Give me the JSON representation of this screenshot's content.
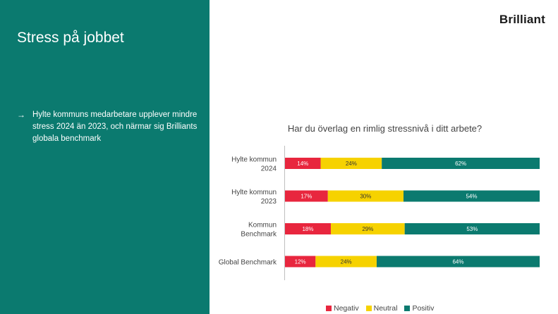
{
  "slide": {
    "title": "Stress på jobbet",
    "bullet_arrow": "→",
    "bullet_text": "Hylte kommuns medarbetare upplever mindre stress 2024 än 2023, och närmar sig Brilliants globala benchmark",
    "logo": "Brilliant"
  },
  "colors": {
    "panel": "#0b7a6f",
    "negativ": "#e8263e",
    "neutral": "#f6d200",
    "positiv": "#0b7a6f"
  },
  "chart_data": {
    "type": "bar",
    "orientation": "horizontal-stacked-100",
    "title": "Har du överlag en rimlig stressnivå i ditt arbete?",
    "categories": [
      [
        "Hylte kommun",
        "2024"
      ],
      [
        "Hylte kommun",
        "2023"
      ],
      [
        "Kommun",
        "Benchmark"
      ],
      [
        "Global Benchmark"
      ]
    ],
    "series": [
      {
        "name": "Negativ",
        "color": "#e8263e",
        "values": [
          14,
          17,
          18,
          12
        ],
        "labels": [
          "14%",
          "17%",
          "18%",
          "12%"
        ]
      },
      {
        "name": "Neutral",
        "color": "#f6d200",
        "values": [
          24,
          30,
          29,
          24
        ],
        "labels": [
          "24%",
          "30%",
          "29%",
          "24%"
        ]
      },
      {
        "name": "Positiv",
        "color": "#0b7a6f",
        "values": [
          62,
          54,
          53,
          64
        ],
        "labels": [
          "62%",
          "54%",
          "53%",
          "64%"
        ]
      }
    ],
    "xlim": [
      0,
      100
    ],
    "legend": "bottom"
  }
}
